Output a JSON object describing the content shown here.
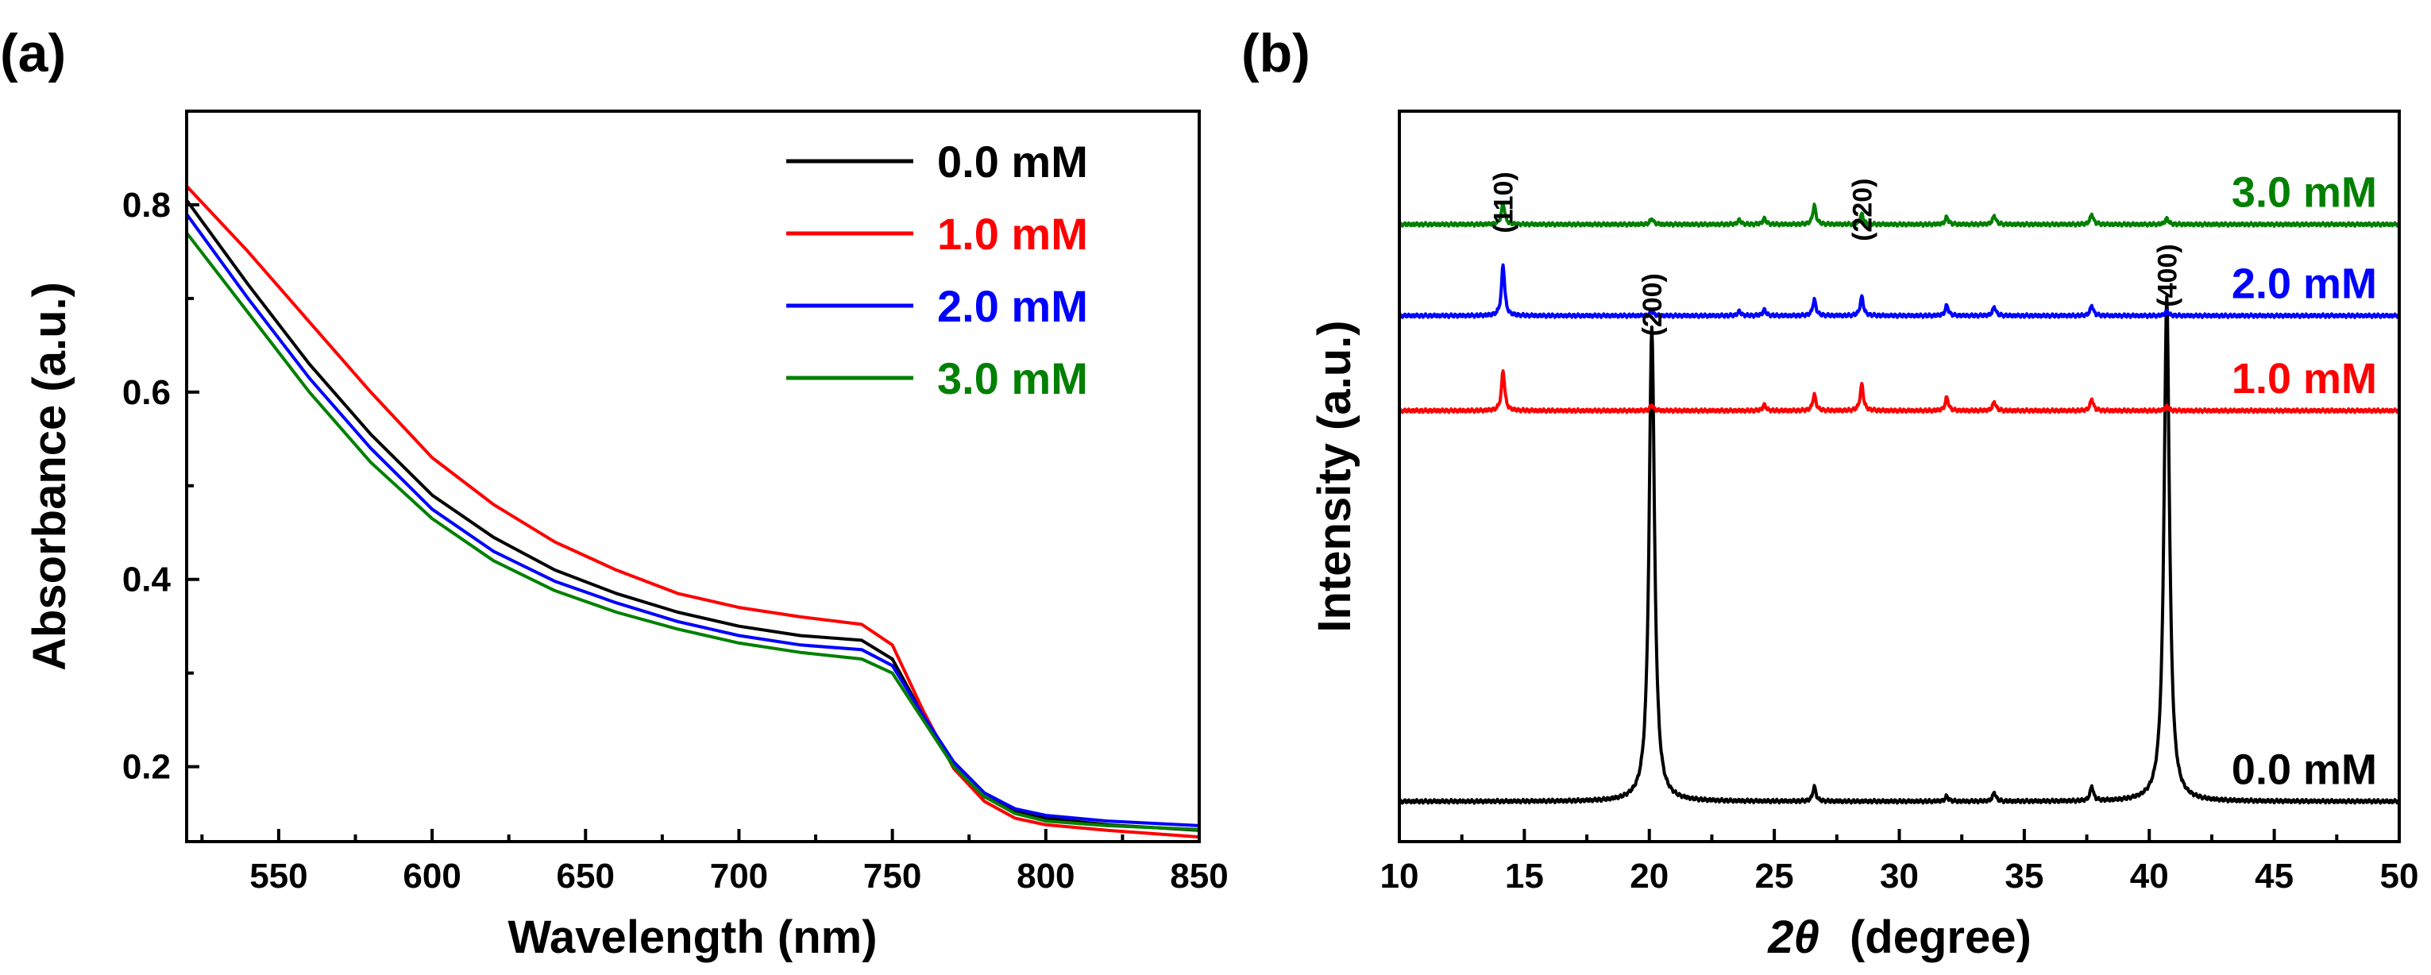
{
  "chart_data": [
    {
      "panel": "(a)",
      "type": "line",
      "xlabel": "Wavelength (nm)",
      "ylabel": "Absorbance (a.u.)",
      "xlim": [
        520,
        850
      ],
      "ylim": [
        0.12,
        0.9
      ],
      "xticks": [
        550,
        600,
        650,
        700,
        750,
        800,
        850
      ],
      "yticks": [
        0.2,
        0.4,
        0.6,
        0.8
      ],
      "grid": false,
      "legend_position": "top-right",
      "x": [
        520,
        540,
        560,
        580,
        600,
        620,
        640,
        660,
        680,
        700,
        720,
        740,
        750,
        760,
        770,
        780,
        790,
        800,
        820,
        850
      ],
      "series": [
        {
          "name": "0.0 mM",
          "color": "#000000",
          "values": [
            0.805,
            0.715,
            0.63,
            0.555,
            0.49,
            0.445,
            0.41,
            0.385,
            0.365,
            0.35,
            0.34,
            0.335,
            0.315,
            0.255,
            0.2,
            0.168,
            0.152,
            0.145,
            0.138,
            0.132
          ]
        },
        {
          "name": "1.0 mM",
          "color": "#ff0000",
          "values": [
            0.82,
            0.75,
            0.675,
            0.6,
            0.53,
            0.48,
            0.44,
            0.41,
            0.385,
            0.37,
            0.36,
            0.352,
            0.33,
            0.26,
            0.198,
            0.163,
            0.145,
            0.138,
            0.132,
            0.125
          ]
        },
        {
          "name": "2.0 mM",
          "color": "#0000ff",
          "values": [
            0.79,
            0.7,
            0.615,
            0.54,
            0.475,
            0.43,
            0.398,
            0.375,
            0.355,
            0.34,
            0.33,
            0.325,
            0.308,
            0.255,
            0.205,
            0.172,
            0.155,
            0.148,
            0.142,
            0.137
          ]
        },
        {
          "name": "3.0 mM",
          "color": "#008000",
          "values": [
            0.77,
            0.685,
            0.6,
            0.525,
            0.465,
            0.42,
            0.388,
            0.365,
            0.347,
            0.332,
            0.322,
            0.315,
            0.3,
            0.25,
            0.2,
            0.168,
            0.15,
            0.142,
            0.137,
            0.133
          ]
        }
      ]
    },
    {
      "panel": "(b)",
      "type": "line",
      "xlabel_symbol": "2θ",
      "xlabel": "(degree)",
      "ylabel": "Intensity (a.u.)",
      "xlim": [
        10,
        50
      ],
      "ylim": [
        0,
        1
      ],
      "xticks": [
        10,
        15,
        20,
        25,
        30,
        35,
        40,
        45,
        50
      ],
      "grid": false,
      "stacked": true,
      "series": [
        {
          "name": "0.0 mM",
          "color": "#000000",
          "baseline": 0.055,
          "peaks": [
            [
              20.1,
              0.65
            ],
            [
              26.6,
              0.02
            ],
            [
              31.9,
              0.007
            ],
            [
              33.8,
              0.012
            ],
            [
              37.7,
              0.02
            ],
            [
              40.7,
              0.69
            ]
          ]
        },
        {
          "name": "1.0 mM",
          "color": "#ff0000",
          "baseline": 0.59,
          "peaks": [
            [
              14.15,
              0.055
            ],
            [
              20.1,
              0.008
            ],
            [
              24.6,
              0.008
            ],
            [
              26.6,
              0.022
            ],
            [
              28.5,
              0.036
            ],
            [
              31.9,
              0.018
            ],
            [
              33.8,
              0.012
            ],
            [
              37.7,
              0.016
            ],
            [
              40.7,
              0.006
            ]
          ]
        },
        {
          "name": "2.0 mM",
          "color": "#0000ff",
          "baseline": 0.72,
          "peaks": [
            [
              14.15,
              0.07
            ],
            [
              20.1,
              0.006
            ],
            [
              23.6,
              0.006
            ],
            [
              24.6,
              0.008
            ],
            [
              26.6,
              0.022
            ],
            [
              28.5,
              0.026
            ],
            [
              31.9,
              0.014
            ],
            [
              33.8,
              0.012
            ],
            [
              37.7,
              0.014
            ],
            [
              40.7,
              0.006
            ]
          ]
        },
        {
          "name": "3.0 mM",
          "color": "#008000",
          "baseline": 0.845,
          "peaks": [
            [
              14.15,
              0.03
            ],
            [
              20.1,
              0.008
            ],
            [
              23.6,
              0.006
            ],
            [
              24.6,
              0.008
            ],
            [
              26.6,
              0.026
            ],
            [
              28.5,
              0.014
            ],
            [
              31.9,
              0.01
            ],
            [
              33.8,
              0.012
            ],
            [
              37.7,
              0.014
            ],
            [
              40.7,
              0.008
            ]
          ]
        }
      ],
      "annotations": [
        {
          "text": "(110)",
          "x": 14.15,
          "y": 0.875
        },
        {
          "text": "(220)",
          "x": 28.5,
          "y": 0.865
        },
        {
          "text": "(200)",
          "x": 20.1,
          "y": 0.735
        },
        {
          "text": "(400)",
          "x": 40.7,
          "y": 0.775
        }
      ]
    }
  ]
}
